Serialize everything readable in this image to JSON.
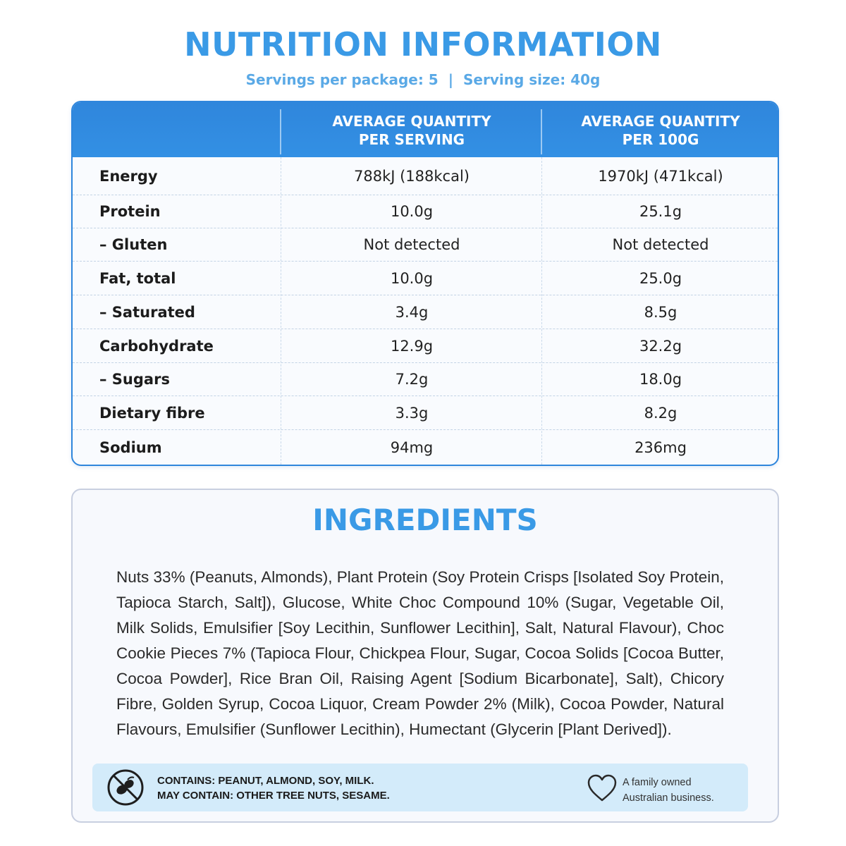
{
  "title": "NUTRITION INFORMATION",
  "servings": {
    "per_package": "Servings per package: 5",
    "separator": "|",
    "serving_size": "Serving size: 40g"
  },
  "table": {
    "headers": {
      "per_serving_line1": "AVERAGE QUANTITY",
      "per_serving_line2": "PER SERVING",
      "per_100g_line1": "AVERAGE QUANTITY",
      "per_100g_line2": "PER 100G"
    },
    "rows": [
      {
        "label": "Energy",
        "per_serving": "788kJ (188kcal)",
        "per_100g": "1970kJ (471kcal)"
      },
      {
        "label": "Protein",
        "per_serving": "10.0g",
        "per_100g": "25.1g"
      },
      {
        "label": "– Gluten",
        "per_serving": "Not detected",
        "per_100g": "Not detected"
      },
      {
        "label": "Fat, total",
        "per_serving": "10.0g",
        "per_100g": "25.0g"
      },
      {
        "label": "– Saturated",
        "per_serving": "3.4g",
        "per_100g": "8.5g"
      },
      {
        "label": "Carbohydrate",
        "per_serving": "12.9g",
        "per_100g": "32.2g"
      },
      {
        "label": "– Sugars",
        "per_serving": "7.2g",
        "per_100g": "18.0g"
      },
      {
        "label": "Dietary fibre",
        "per_serving": "3.3g",
        "per_100g": "8.2g"
      },
      {
        "label": "Sodium",
        "per_serving": "94mg",
        "per_100g": "236mg"
      }
    ]
  },
  "ingredients": {
    "title": "INGREDIENTS",
    "text": "Nuts 33% (Peanuts, Almonds), Plant Protein (Soy Protein Crisps [Isolated Soy Protein, Tapioca Starch, Salt]), Glucose, White Choc Compound 10% (Sugar, Vegetable Oil, Milk Solids, Emulsifier [Soy Lecithin, Sunflower Lecithin], Salt, Natural Flavour), Choc Cookie Pieces 7% (Tapioca Flour, Chickpea Flour, Sugar, Cocoa Solids [Cocoa Butter, Cocoa Powder], Rice Bran Oil, Raising Agent [Sodium Bicarbonate], Salt), Chicory Fibre, Golden Syrup, Cocoa Liquor, Cream Powder 2% (Milk), Cocoa Powder, Natural Flavours, Emulsifier (Sunflower Lecithin), Humectant (Glycerin [Plant Derived])."
  },
  "allergens": {
    "contains": "CONTAINS: PEANUT, ALMOND, SOY, MILK.",
    "may_contain": "MAY CONTAIN: OTHER TREE NUTS, SESAME.",
    "icon": "no-nuts-icon"
  },
  "family": {
    "line1": "A family owned",
    "line2": "Australian business.",
    "icon": "heart-icon"
  },
  "colors": {
    "accent": "#3a9ae6",
    "header_blue": "#2f86dc",
    "allergen_bg": "#d3ebfa"
  }
}
